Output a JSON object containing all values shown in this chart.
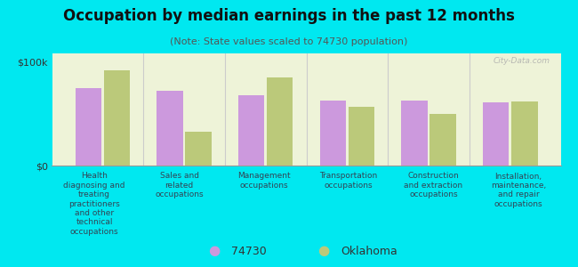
{
  "title": "Occupation by median earnings in the past 12 months",
  "subtitle": "(Note: State values scaled to 74730 population)",
  "categories": [
    "Health\ndiagnosing and\ntreating\npractitioners\nand other\ntechnical\noccupations",
    "Sales and\nrelated\noccupations",
    "Management\noccupations",
    "Transportation\noccupations",
    "Construction\nand extraction\noccupations",
    "Installation,\nmaintenance,\nand repair\noccupations"
  ],
  "values_74730": [
    75000,
    72000,
    68000,
    63000,
    63000,
    61000
  ],
  "values_oklahoma": [
    92000,
    33000,
    85000,
    57000,
    50000,
    62000
  ],
  "color_74730": "#cc99dd",
  "color_oklahoma": "#bbc97a",
  "background_color": "#00e8f0",
  "plot_bg_color": "#eef3d8",
  "ylim": [
    0,
    108000
  ],
  "yticks": [
    0,
    100000
  ],
  "ytick_labels": [
    "$0",
    "$100k"
  ],
  "legend_label_74730": "74730",
  "legend_label_oklahoma": "Oklahoma",
  "watermark": "City-Data.com"
}
